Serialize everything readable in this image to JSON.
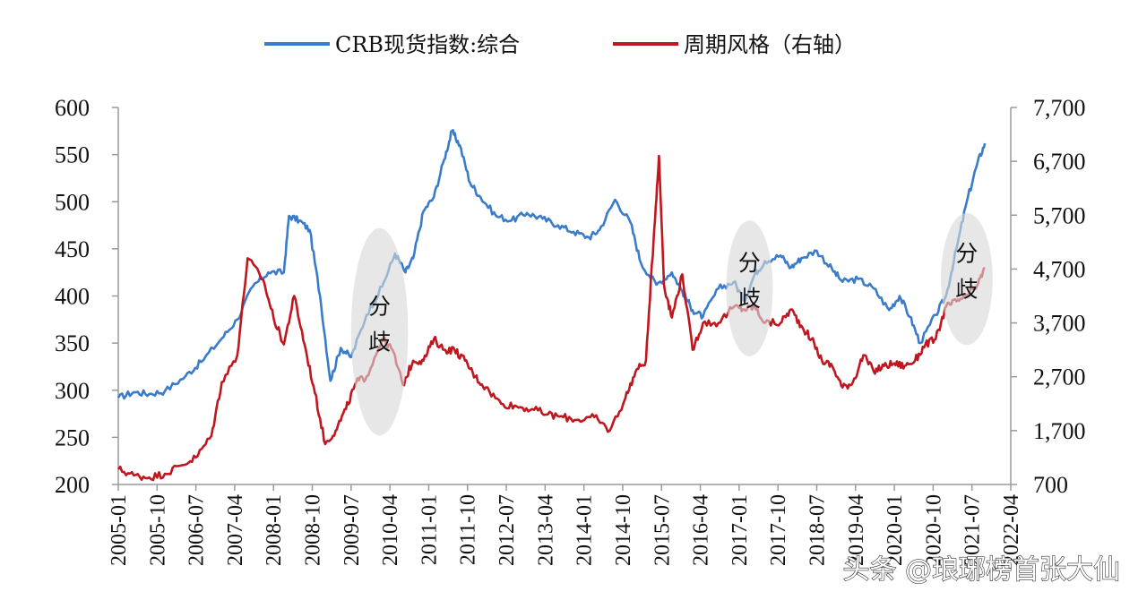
{
  "chart_data": {
    "type": "line",
    "title": "",
    "xlabel": "",
    "ylabel": "",
    "x_tick_labels": [
      "2005-01",
      "2005-10",
      "2006-07",
      "2007-04",
      "2008-01",
      "2008-10",
      "2009-07",
      "2010-04",
      "2011-01",
      "2011-10",
      "2012-07",
      "2013-04",
      "2014-01",
      "2014-10",
      "2015-07",
      "2016-04",
      "2017-01",
      "2017-10",
      "2018-07",
      "2019-04",
      "2020-01",
      "2020-10",
      "2021-07",
      "2022-04"
    ],
    "x_range": [
      2005.0,
      2022.25
    ],
    "left_axis": {
      "ylim": [
        200,
        600
      ],
      "ticks": [
        "600",
        "550",
        "500",
        "450",
        "400",
        "350",
        "300",
        "250",
        "200"
      ]
    },
    "right_axis": {
      "ylim": [
        700,
        7700
      ],
      "ticks": [
        "7,700",
        "6,700",
        "5,700",
        "4,700",
        "3,700",
        "2,700",
        "1,700",
        "700"
      ]
    },
    "legend": {
      "position": "top-center"
    },
    "series": [
      {
        "name": "CRB现货指数:综合",
        "axis": "left",
        "color": "#3a7cc9",
        "x": [
          2005.0,
          2005.3,
          2005.6,
          2005.9,
          2006.3,
          2006.6,
          2007.0,
          2007.3,
          2007.6,
          2007.9,
          2008.2,
          2008.3,
          2008.5,
          2008.7,
          2008.9,
          2009.1,
          2009.3,
          2009.5,
          2009.8,
          2010.1,
          2010.35,
          2010.55,
          2010.7,
          2010.9,
          2011.1,
          2011.3,
          2011.45,
          2011.6,
          2011.8,
          2012.0,
          2012.3,
          2012.6,
          2012.9,
          2013.2,
          2013.5,
          2013.8,
          2014.1,
          2014.3,
          2014.6,
          2014.9,
          2015.1,
          2015.4,
          2015.7,
          2015.9,
          2016.1,
          2016.3,
          2016.6,
          2016.9,
          2017.1,
          2017.3,
          2017.5,
          2017.8,
          2018.0,
          2018.2,
          2018.5,
          2018.8,
          2019.0,
          2019.3,
          2019.6,
          2019.9,
          2020.1,
          2020.3,
          2020.5,
          2020.8,
          2021.0,
          2021.2,
          2021.4,
          2021.6,
          2021.75
        ],
        "values": [
          292,
          298,
          296,
          299,
          315,
          330,
          355,
          375,
          410,
          425,
          425,
          485,
          480,
          470,
          400,
          310,
          345,
          335,
          380,
          410,
          445,
          425,
          440,
          490,
          505,
          545,
          575,
          560,
          520,
          505,
          485,
          480,
          488,
          482,
          475,
          468,
          462,
          470,
          502,
          478,
          435,
          412,
          425,
          405,
          385,
          378,
          408,
          415,
          395,
          423,
          437,
          443,
          430,
          440,
          448,
          428,
          415,
          418,
          408,
          385,
          400,
          378,
          350,
          380,
          400,
          450,
          500,
          540,
          562
        ]
      },
      {
        "name": "周期风格（右轴）",
        "axis": "right",
        "color": "#c0161f",
        "x": [
          2005.0,
          2005.3,
          2005.6,
          2005.9,
          2006.2,
          2006.5,
          2006.8,
          2007.0,
          2007.3,
          2007.5,
          2007.8,
          2008.0,
          2008.2,
          2008.4,
          2008.6,
          2008.8,
          2009.0,
          2009.2,
          2009.4,
          2009.6,
          2009.8,
          2010.1,
          2010.3,
          2010.5,
          2010.7,
          2010.9,
          2011.1,
          2011.3,
          2011.5,
          2011.7,
          2011.9,
          2012.1,
          2012.4,
          2012.7,
          2013.0,
          2013.3,
          2013.6,
          2013.9,
          2014.2,
          2014.5,
          2014.8,
          2015.0,
          2015.2,
          2015.35,
          2015.45,
          2015.55,
          2015.7,
          2015.9,
          2016.1,
          2016.3,
          2016.6,
          2016.9,
          2017.1,
          2017.3,
          2017.5,
          2017.8,
          2018.0,
          2018.2,
          2018.4,
          2018.6,
          2018.8,
          2019.0,
          2019.2,
          2019.4,
          2019.6,
          2019.8,
          2020.0,
          2020.2,
          2020.4,
          2020.6,
          2020.8,
          2021.0,
          2021.2,
          2021.4,
          2021.6,
          2021.75
        ],
        "values": [
          985,
          870,
          830,
          900,
          1050,
          1200,
          1600,
          2600,
          3100,
          4900,
          4500,
          3800,
          3300,
          4200,
          3300,
          2400,
          1450,
          1700,
          2100,
          2600,
          2700,
          3400,
          3200,
          2550,
          3000,
          3000,
          3400,
          3200,
          3200,
          3000,
          2700,
          2500,
          2200,
          2150,
          2100,
          2000,
          1950,
          1900,
          1950,
          1700,
          2300,
          2800,
          3000,
          5300,
          6800,
          4400,
          3800,
          4600,
          3200,
          3700,
          3700,
          4000,
          3950,
          4000,
          3700,
          3700,
          3950,
          3650,
          3400,
          3000,
          2900,
          2500,
          2600,
          3100,
          2800,
          2900,
          2950,
          2900,
          3000,
          3300,
          3400,
          4000,
          4100,
          4200,
          4400,
          4700
        ]
      }
    ],
    "annotations": [
      {
        "text": [
          "分",
          "歧"
        ],
        "x_center": 2010.05,
        "left_y_center": 362,
        "x_halfwidth": 0.55,
        "left_y_halfheight": 110
      },
      {
        "text": [
          "分",
          "歧"
        ],
        "x_center": 2017.2,
        "left_y_center": 408,
        "x_halfwidth": 0.45,
        "left_y_halfheight": 72
      },
      {
        "text": [
          "分",
          "歧"
        ],
        "x_center": 2021.4,
        "left_y_center": 418,
        "x_halfwidth": 0.5,
        "left_y_halfheight": 70
      }
    ]
  },
  "legend_items": {
    "crb": "CRB现货指数:综合",
    "cyclical": "周期风格（右轴）"
  },
  "watermark": "头条 @琅琊榜首张大仙"
}
